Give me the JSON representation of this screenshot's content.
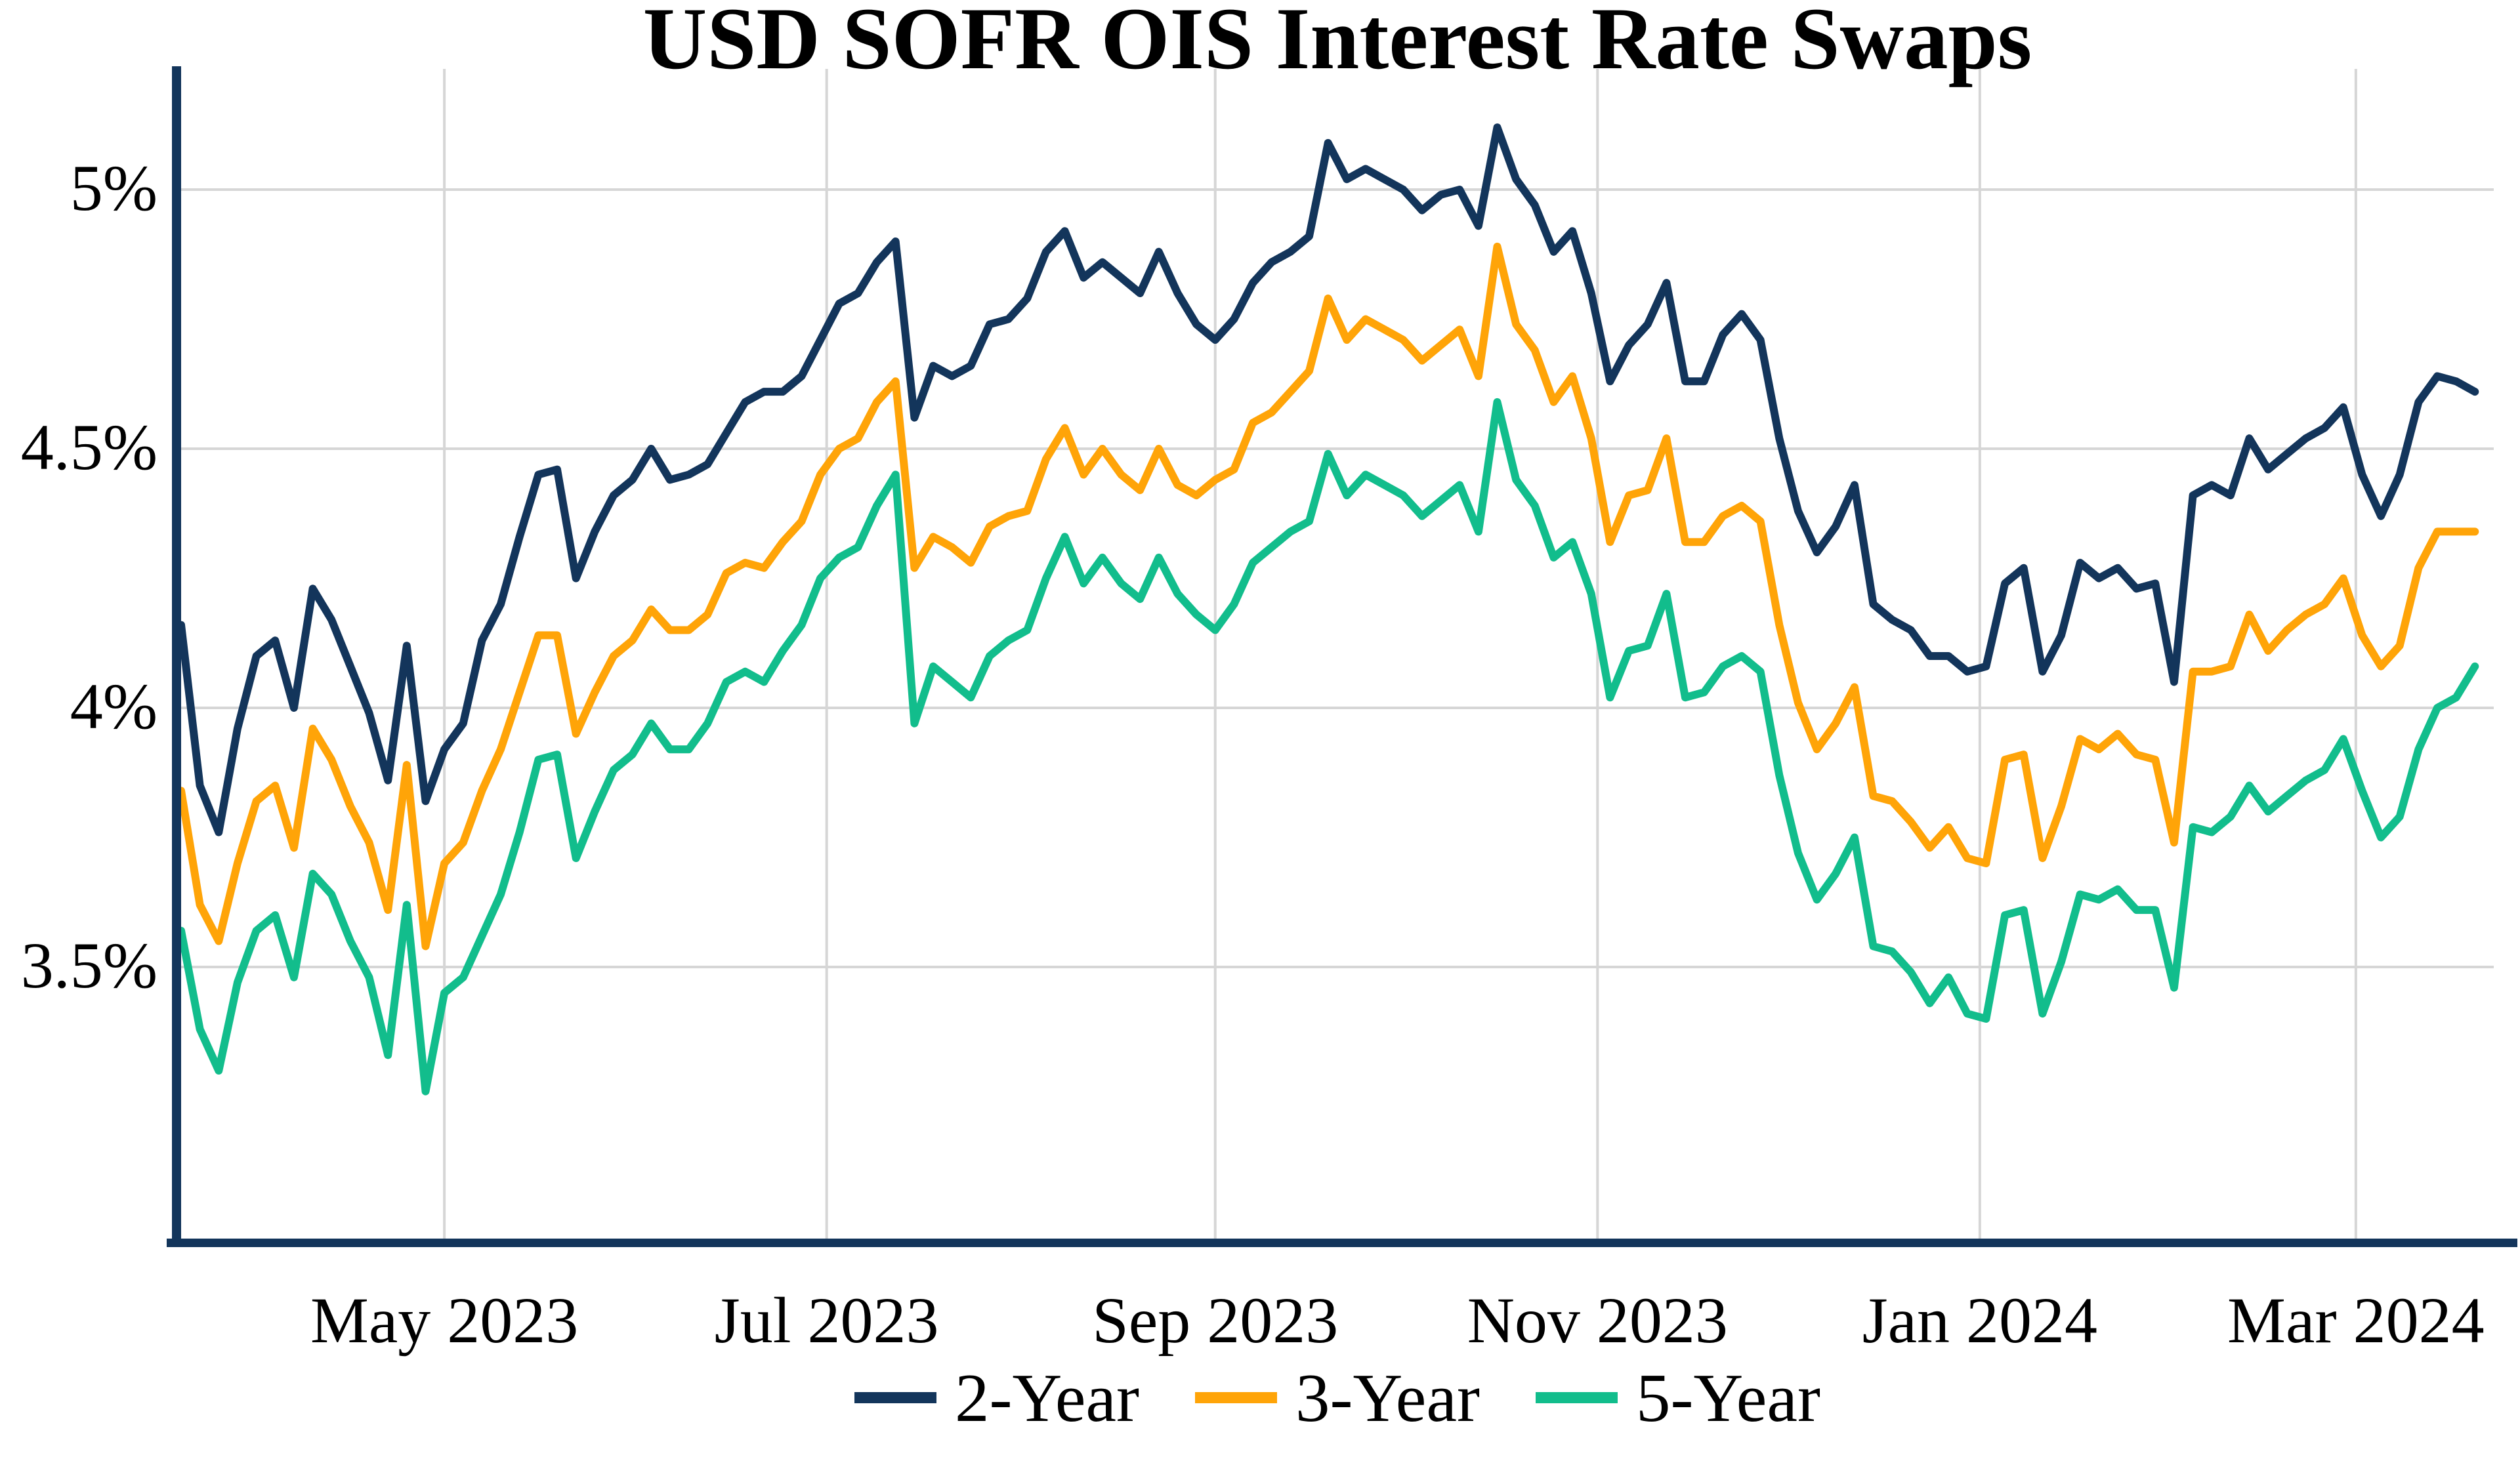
{
  "title": "USD SOFR OIS Interest Rate Swaps",
  "chart_data": {
    "type": "line",
    "title": "USD SOFR OIS Interest Rate Swaps",
    "xlabel": "",
    "ylabel": "",
    "grid": true,
    "legend_position": "bottom-center",
    "background_color": "#ffffff",
    "grid_color": "#d6d6d6",
    "spine_color": "#13355b",
    "text_color": "#000000",
    "ylim": [
      2.97,
      5.23
    ],
    "xlim_days": [
      0,
      369
    ],
    "x_start_date": "2023-03-20",
    "x_step_days": 3,
    "y_ticks": [
      {
        "value": 5.0,
        "label": "5%"
      },
      {
        "value": 4.5,
        "label": "4.5%"
      },
      {
        "value": 4.0,
        "label": "4%"
      },
      {
        "value": 3.5,
        "label": "3.5%"
      }
    ],
    "x_ticks": [
      {
        "day": 42,
        "label": "May 2023"
      },
      {
        "day": 103,
        "label": "Jul 2023"
      },
      {
        "day": 165,
        "label": "Sep 2023"
      },
      {
        "day": 226,
        "label": "Nov 2023"
      },
      {
        "day": 287,
        "label": "Jan 2024"
      },
      {
        "day": 347,
        "label": "Mar 2024"
      }
    ],
    "series": [
      {
        "name": "2-Year",
        "color": "#13355b",
        "values": [
          4.16,
          3.85,
          3.76,
          3.96,
          4.1,
          4.13,
          4.0,
          4.23,
          4.17,
          4.08,
          3.99,
          3.86,
          4.12,
          3.82,
          3.92,
          3.97,
          4.13,
          4.2,
          4.33,
          4.45,
          4.46,
          4.25,
          4.34,
          4.41,
          4.44,
          4.5,
          4.44,
          4.45,
          4.47,
          4.53,
          4.59,
          4.61,
          4.61,
          4.64,
          4.71,
          4.78,
          4.8,
          4.86,
          4.9,
          4.56,
          4.66,
          4.64,
          4.66,
          4.74,
          4.75,
          4.79,
          4.88,
          4.92,
          4.83,
          4.86,
          4.83,
          4.8,
          4.88,
          4.8,
          4.74,
          4.71,
          4.75,
          4.82,
          4.86,
          4.88,
          4.91,
          5.09,
          5.02,
          5.04,
          5.02,
          5.0,
          4.96,
          4.99,
          5.0,
          4.93,
          5.12,
          5.02,
          4.97,
          4.88,
          4.92,
          4.8,
          4.63,
          4.7,
          4.74,
          4.82,
          4.63,
          4.63,
          4.72,
          4.76,
          4.71,
          4.52,
          4.38,
          4.3,
          4.35,
          4.43,
          4.2,
          4.17,
          4.15,
          4.1,
          4.1,
          4.07,
          4.08,
          4.24,
          4.27,
          4.07,
          4.14,
          4.28,
          4.25,
          4.27,
          4.23,
          4.24,
          4.05,
          4.41,
          4.43,
          4.41,
          4.52,
          4.46,
          4.49,
          4.52,
          4.54,
          4.58,
          4.45,
          4.37,
          4.45,
          4.59,
          4.64,
          4.63,
          4.61
        ]
      },
      {
        "name": "3-Year",
        "color": "#ffa408",
        "values": [
          3.84,
          3.62,
          3.55,
          3.7,
          3.82,
          3.85,
          3.73,
          3.96,
          3.9,
          3.81,
          3.74,
          3.61,
          3.89,
          3.54,
          3.7,
          3.74,
          3.84,
          3.92,
          4.03,
          4.14,
          4.14,
          3.95,
          4.03,
          4.1,
          4.13,
          4.19,
          4.15,
          4.15,
          4.18,
          4.26,
          4.28,
          4.27,
          4.32,
          4.36,
          4.45,
          4.5,
          4.52,
          4.59,
          4.63,
          4.27,
          4.33,
          4.31,
          4.28,
          4.35,
          4.37,
          4.38,
          4.48,
          4.54,
          4.45,
          4.5,
          4.45,
          4.42,
          4.5,
          4.43,
          4.41,
          4.44,
          4.46,
          4.55,
          4.57,
          4.61,
          4.65,
          4.79,
          4.71,
          4.75,
          4.73,
          4.71,
          4.67,
          4.7,
          4.73,
          4.64,
          4.89,
          4.74,
          4.69,
          4.59,
          4.64,
          4.52,
          4.32,
          4.41,
          4.42,
          4.52,
          4.32,
          4.32,
          4.37,
          4.39,
          4.36,
          4.16,
          4.01,
          3.92,
          3.97,
          4.04,
          3.83,
          3.82,
          3.78,
          3.73,
          3.77,
          3.71,
          3.7,
          3.9,
          3.91,
          3.71,
          3.81,
          3.94,
          3.92,
          3.95,
          3.91,
          3.9,
          3.74,
          4.07,
          4.07,
          4.08,
          4.18,
          4.11,
          4.15,
          4.18,
          4.2,
          4.25,
          4.14,
          4.08,
          4.12,
          4.27,
          4.34,
          4.34,
          4.34
        ]
      },
      {
        "name": "5-Year",
        "color": "#12bd8c",
        "values": [
          3.57,
          3.38,
          3.3,
          3.47,
          3.57,
          3.6,
          3.48,
          3.68,
          3.64,
          3.55,
          3.48,
          3.33,
          3.62,
          3.26,
          3.45,
          3.48,
          3.56,
          3.64,
          3.76,
          3.9,
          3.91,
          3.71,
          3.8,
          3.88,
          3.91,
          3.97,
          3.92,
          3.92,
          3.97,
          4.05,
          4.07,
          4.05,
          4.11,
          4.16,
          4.25,
          4.29,
          4.31,
          4.39,
          4.45,
          3.97,
          4.08,
          4.05,
          4.02,
          4.1,
          4.13,
          4.15,
          4.25,
          4.33,
          4.24,
          4.29,
          4.24,
          4.21,
          4.29,
          4.22,
          4.18,
          4.15,
          4.2,
          4.28,
          4.31,
          4.34,
          4.36,
          4.49,
          4.41,
          4.45,
          4.43,
          4.41,
          4.37,
          4.4,
          4.43,
          4.34,
          4.59,
          4.44,
          4.39,
          4.29,
          4.32,
          4.22,
          4.02,
          4.11,
          4.12,
          4.22,
          4.02,
          4.03,
          4.08,
          4.1,
          4.07,
          3.87,
          3.72,
          3.63,
          3.68,
          3.75,
          3.54,
          3.53,
          3.49,
          3.43,
          3.48,
          3.41,
          3.4,
          3.6,
          3.61,
          3.41,
          3.51,
          3.64,
          3.63,
          3.65,
          3.61,
          3.61,
          3.46,
          3.77,
          3.76,
          3.79,
          3.85,
          3.8,
          3.83,
          3.86,
          3.88,
          3.94,
          3.84,
          3.75,
          3.79,
          3.92,
          4.0,
          4.02,
          4.08
        ]
      }
    ]
  },
  "legend": {
    "item1": "2-Year",
    "item2": "3-Year",
    "item3": "5-Year"
  }
}
